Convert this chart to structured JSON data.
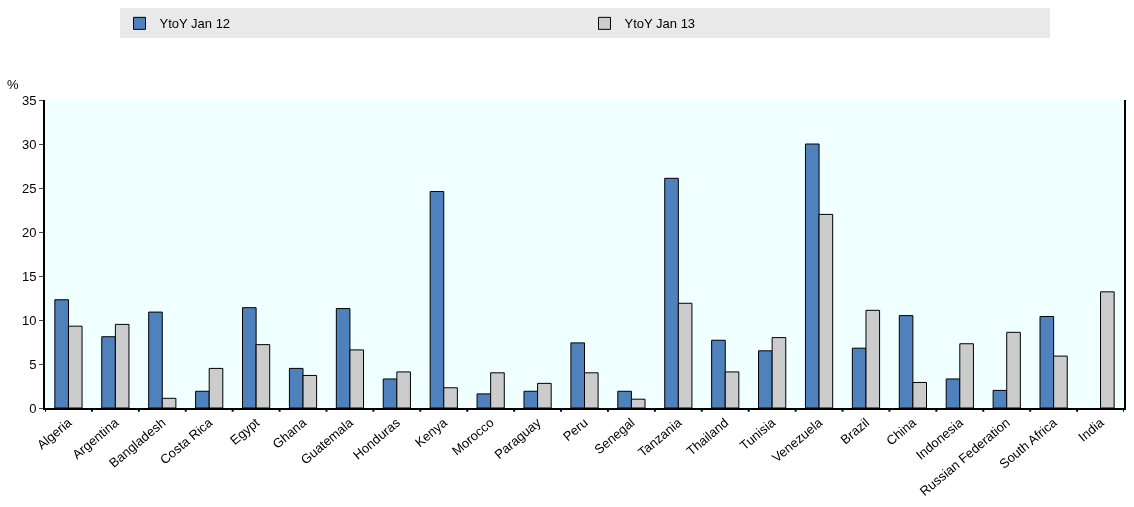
{
  "chart_data": {
    "type": "bar",
    "ylabel": "%",
    "categories": [
      "Algeria",
      "Argentina",
      "Bangladesh",
      "Costa Rica",
      "Egypt",
      "Ghana",
      "Guatemala",
      "Honduras",
      "Kenya",
      "Morocco",
      "Paraguay",
      "Peru",
      "Senegal",
      "Tanzania",
      "Thailand",
      "Tunisia",
      "Venezuela",
      "Brazil",
      "China",
      "Indonesia",
      "Russian Federation",
      "South Africa",
      "India"
    ],
    "series": [
      {
        "name": "YtoY Jan 12",
        "color": "#4f81bd",
        "values": [
          12.3,
          8.1,
          10.9,
          1.9,
          11.4,
          4.5,
          11.3,
          3.3,
          24.6,
          1.6,
          1.9,
          7.4,
          1.9,
          26.1,
          7.7,
          6.5,
          30.0,
          6.8,
          10.5,
          3.3,
          2.0,
          10.4,
          null
        ]
      },
      {
        "name": "YtoY Jan 13",
        "color": "#cccccc",
        "values": [
          9.3,
          9.5,
          1.1,
          4.5,
          7.2,
          3.7,
          6.6,
          4.1,
          2.3,
          4.0,
          2.8,
          4.0,
          1.0,
          11.9,
          4.1,
          8.0,
          22.0,
          11.1,
          2.9,
          7.3,
          8.6,
          5.9,
          13.2
        ]
      }
    ],
    "ylim": [
      0,
      35
    ],
    "yticks": [
      0,
      5,
      10,
      15,
      20,
      25,
      30,
      35
    ],
    "grid": false,
    "legend": "top"
  }
}
